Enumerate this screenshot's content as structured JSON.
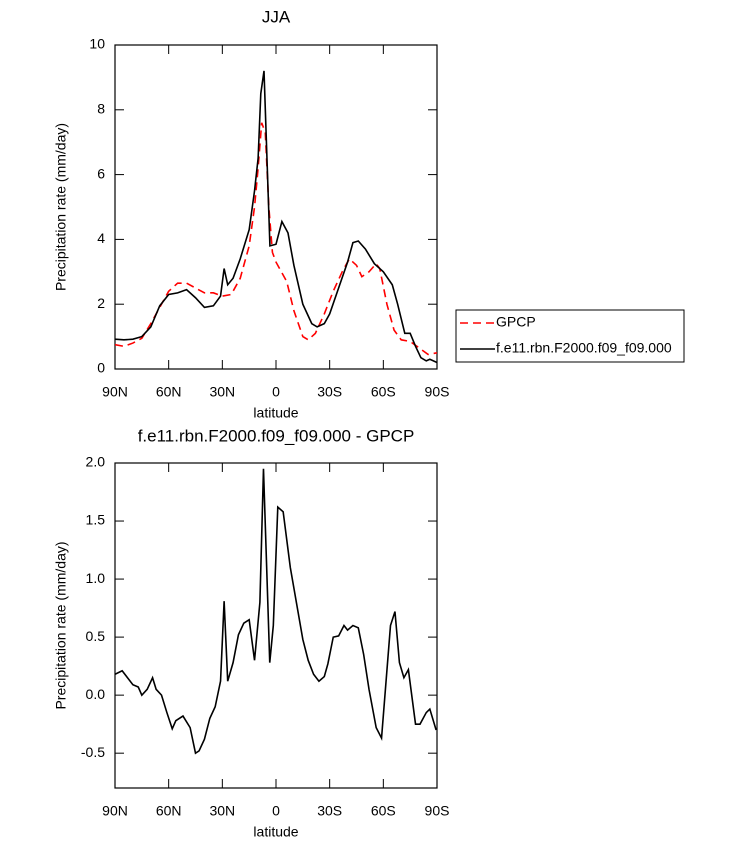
{
  "chart_data": [
    {
      "type": "line",
      "title": "JJA",
      "xlabel": "latitude",
      "ylabel": "Precipitation rate (mm/day)",
      "xlim": [
        90,
        -90
      ],
      "xticks": [
        {
          "value": 90,
          "label": "90N"
        },
        {
          "value": 60,
          "label": "60N"
        },
        {
          "value": 30,
          "label": "30N"
        },
        0,
        {
          "value": -30,
          "label": "30S"
        },
        {
          "value": -60,
          "label": "60S"
        },
        {
          "value": -90,
          "label": "90S"
        }
      ],
      "ylim": [
        0,
        10
      ],
      "yticks": [
        0,
        2,
        4,
        6,
        8,
        10
      ],
      "legend": "outside-right",
      "series": [
        {
          "name": "GPCP",
          "color": "#ff0000",
          "line_style": "dashed",
          "x": [
            90,
            85,
            80,
            75,
            70,
            65,
            60,
            55,
            50,
            45,
            40,
            35,
            30,
            25,
            20,
            15,
            12,
            10,
            8,
            6,
            4,
            2,
            0,
            -3,
            -6,
            -10,
            -15,
            -18,
            -22,
            -27,
            -32,
            -37,
            -41,
            -45,
            -48,
            -52,
            -56,
            -58,
            -62,
            -66,
            -70,
            -75,
            -80,
            -85,
            -90
          ],
          "values": [
            0.75,
            0.7,
            0.8,
            0.95,
            1.4,
            1.9,
            2.4,
            2.65,
            2.65,
            2.5,
            2.35,
            2.35,
            2.25,
            2.3,
            2.8,
            3.8,
            5.0,
            6.2,
            7.6,
            7.3,
            5.0,
            3.6,
            3.3,
            3.0,
            2.7,
            1.8,
            1.0,
            0.9,
            1.1,
            1.7,
            2.4,
            3.0,
            3.4,
            3.2,
            2.85,
            3.0,
            3.25,
            3.1,
            2.0,
            1.2,
            0.9,
            0.85,
            0.65,
            0.45,
            0.5
          ]
        },
        {
          "name": "f.e11.rbn.F2000.f09_f09.000",
          "color": "#000000",
          "line_style": "solid",
          "x": [
            90,
            85,
            80,
            75,
            70,
            65,
            60,
            55,
            50,
            45,
            40,
            35,
            31,
            29,
            27,
            24,
            20,
            15,
            12,
            10,
            8.5,
            6.7,
            3.4,
            0,
            -3.3,
            -6.7,
            -10,
            -15,
            -20,
            -23,
            -27,
            -30,
            -35,
            -40,
            -43,
            -46,
            -50,
            -55,
            -60,
            -65,
            -68,
            -72,
            -75,
            -78,
            -81,
            -84,
            -86,
            -90
          ],
          "values": [
            0.92,
            0.9,
            0.92,
            1.0,
            1.3,
            1.95,
            2.3,
            2.35,
            2.45,
            2.2,
            1.9,
            1.95,
            2.25,
            3.1,
            2.6,
            2.8,
            3.4,
            4.3,
            5.5,
            6.5,
            8.5,
            9.2,
            3.8,
            3.85,
            4.55,
            4.2,
            3.2,
            2.0,
            1.4,
            1.3,
            1.4,
            1.7,
            2.5,
            3.3,
            3.9,
            3.95,
            3.7,
            3.25,
            3.0,
            2.6,
            2.0,
            1.1,
            1.1,
            0.7,
            0.35,
            0.25,
            0.3,
            0.2
          ]
        }
      ]
    },
    {
      "type": "line",
      "title": "f.e11.rbn.F2000.f09_f09.000 - GPCP",
      "xlabel": "latitude",
      "ylabel": "Precipitation rate (mm/day)",
      "xlim": [
        90,
        -90
      ],
      "xticks": [
        {
          "value": 90,
          "label": "90N"
        },
        {
          "value": 60,
          "label": "60N"
        },
        {
          "value": 30,
          "label": "30N"
        },
        0,
        {
          "value": -30,
          "label": "30S"
        },
        {
          "value": -60,
          "label": "60S"
        },
        {
          "value": -90,
          "label": "90S"
        }
      ],
      "ylim": [
        -0.8,
        2.0
      ],
      "yticks": [
        -0.5,
        {
          "value": 0,
          "label": "0.0"
        },
        0.5,
        {
          "value": 1,
          "label": "1.0"
        },
        1.5,
        {
          "value": 2,
          "label": "2.0"
        }
      ],
      "series": [
        {
          "color": "#000000",
          "line_style": "solid",
          "x": [
            90,
            86,
            83,
            80,
            77,
            75,
            72,
            69,
            67,
            64,
            61,
            58,
            56,
            52,
            48,
            45,
            43,
            40,
            37,
            34,
            31,
            29,
            27,
            24,
            21,
            18,
            15,
            12,
            9,
            7,
            3.5,
            1.5,
            -1,
            -4,
            -8,
            -15,
            -18,
            -21,
            -24,
            -27,
            -29,
            -32,
            -35,
            -38,
            -40,
            -43,
            -46,
            -49,
            -52,
            -56,
            -59,
            -64,
            -66.5,
            -69,
            -71.5,
            -74,
            -78,
            -80.5,
            -84,
            -86,
            -89.5
          ],
          "values": [
            0.18,
            0.21,
            0.15,
            0.09,
            0.07,
            0.0,
            0.05,
            0.15,
            0.05,
            0.0,
            -0.15,
            -0.29,
            -0.22,
            -0.18,
            -0.28,
            -0.5,
            -0.48,
            -0.38,
            -0.2,
            -0.1,
            0.12,
            0.81,
            0.12,
            0.28,
            0.52,
            0.62,
            0.65,
            0.3,
            0.8,
            1.95,
            0.28,
            0.6,
            1.62,
            1.58,
            1.1,
            0.48,
            0.3,
            0.18,
            0.12,
            0.16,
            0.27,
            0.5,
            0.51,
            0.6,
            0.56,
            0.6,
            0.58,
            0.35,
            0.05,
            -0.28,
            -0.37,
            0.6,
            0.72,
            0.28,
            0.15,
            0.22,
            -0.25,
            -0.25,
            -0.15,
            -0.12,
            -0.3
          ]
        }
      ]
    }
  ]
}
